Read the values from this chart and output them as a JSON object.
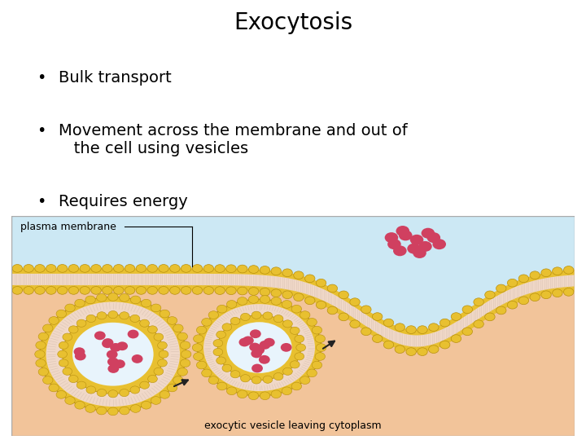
{
  "title": "Exocytosis",
  "bullet_points": [
    "Bulk transport",
    "Movement across the membrane and out of\n   the cell using vesicles",
    "Requires energy"
  ],
  "label_plasma": "plasma membrane",
  "label_exocytic": "exocytic vesicle leaving cytoplasm",
  "bg_color": "#ffffff",
  "title_fontsize": 20,
  "bullet_fontsize": 14,
  "colors": {
    "extracellular_bg": "#cce8f4",
    "cytoplasm_bg": "#f2c49a",
    "membrane_yellow": "#e8c030",
    "membrane_pink": "#f0d8c8",
    "vesicle_content_bg": "#e8f4fc",
    "dots": "#d04060",
    "border": "#aaaaaa",
    "arrow": "#222222"
  }
}
